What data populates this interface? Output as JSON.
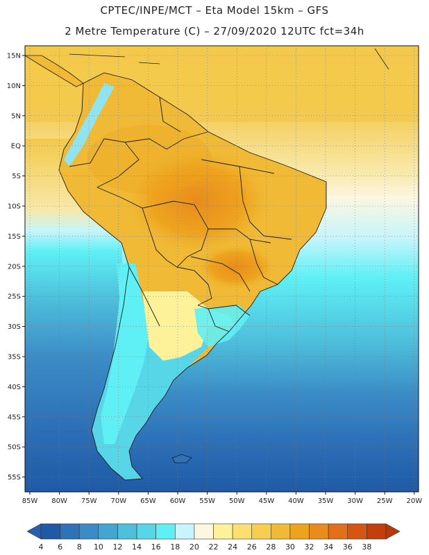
{
  "header": {
    "line1": "CPTEC/INPE/MCT –  Eta Model 15km – GFS",
    "line2": "2 Metre Temperature (C) – 27/09/2020 12UTC fct=34h"
  },
  "map": {
    "lat_labels": [
      "15N",
      "10N",
      "5N",
      "EQ",
      "5S",
      "10S",
      "15S",
      "20S",
      "25S",
      "30S",
      "35S",
      "40S",
      "45S",
      "50S",
      "55S"
    ],
    "lon_labels": [
      "85W",
      "80W",
      "75W",
      "70W",
      "65W",
      "60W",
      "55W",
      "50W",
      "45W",
      "40W",
      "35W",
      "30W",
      "25W",
      "20W"
    ]
  },
  "colorbar": {
    "ticks": [
      "4",
      "6",
      "8",
      "10",
      "12",
      "14",
      "16",
      "18",
      "20",
      "22",
      "24",
      "26",
      "28",
      "30",
      "32",
      "34",
      "36",
      "38"
    ],
    "colors": [
      "#1f5aa6",
      "#2e72b8",
      "#3b8cc6",
      "#45a5d1",
      "#4ec0dc",
      "#56d6e6",
      "#5ef0f5",
      "#c7f5fb",
      "#fdf6e0",
      "#fdf29a",
      "#fbe070",
      "#f6cf50",
      "#f0ba36",
      "#eea31e",
      "#e88c1c",
      "#e2701a",
      "#d75512",
      "#c43d0c"
    ],
    "low_color": "#2a5fb0",
    "high_color": "#b8380a"
  }
}
